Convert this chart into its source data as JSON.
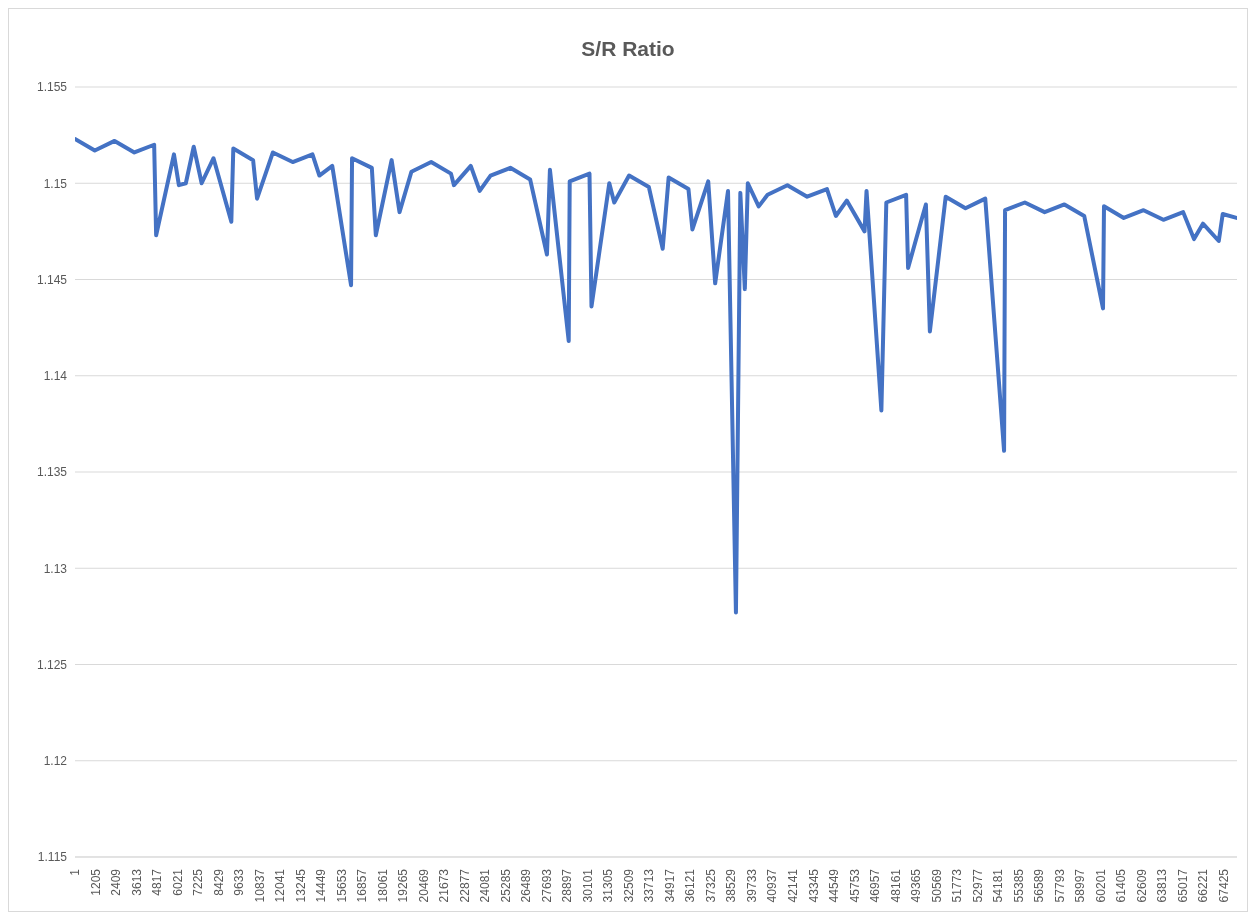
{
  "chart_data": {
    "type": "line",
    "title": "S/R Ratio",
    "x": [
      1,
      1162,
      2324,
      3485,
      4647,
      4763,
      5808,
      6098,
      6505,
      6969,
      7434,
      8131,
      9176,
      9292,
      10454,
      10686,
      11615,
      12776,
      13938,
      14344,
      15099,
      16203,
      16261,
      17422,
      17656,
      18583,
      19048,
      19745,
      20906,
      22068,
      22242,
      23229,
      23752,
      24390,
      25552,
      26713,
      27700,
      27875,
      28978,
      29036,
      30197,
      30314,
      31359,
      31649,
      32520,
      33682,
      34494,
      34843,
      36004,
      36237,
      37166,
      37572,
      38327,
      38792,
      39050,
      39314,
      39489,
      40127,
      40650,
      41811,
      42973,
      44134,
      44657,
      45296,
      46341,
      46457,
      47328,
      47618,
      48780,
      48896,
      49651,
      49941,
      50174,
      51103,
      52264,
      53425,
      54529,
      54587,
      55748,
      56910,
      58071,
      59232,
      60336,
      60394,
      61555,
      62717,
      63878,
      65039,
      65678,
      66201,
      67130,
      67362,
      68174
    ],
    "series": [
      {
        "color": "#4472c4",
        "values": [
          1.1523,
          1.1517,
          1.1522,
          1.1516,
          1.152,
          1.1473,
          1.1515,
          1.1499,
          1.15,
          1.1519,
          1.15,
          1.1513,
          1.148,
          1.1518,
          1.1512,
          1.1492,
          1.1516,
          1.1511,
          1.1515,
          1.1504,
          1.1509,
          1.1447,
          1.1513,
          1.1508,
          1.1473,
          1.1512,
          1.1485,
          1.1506,
          1.1511,
          1.1505,
          1.1499,
          1.1509,
          1.1496,
          1.1504,
          1.1508,
          1.1502,
          1.1463,
          1.1507,
          1.1418,
          1.1501,
          1.1505,
          1.1436,
          1.15,
          1.149,
          1.1504,
          1.1498,
          1.1466,
          1.1503,
          1.1497,
          1.1476,
          1.1501,
          1.1448,
          1.1496,
          1.1277,
          1.1495,
          1.1445,
          1.15,
          1.1488,
          1.1494,
          1.1499,
          1.1493,
          1.1497,
          1.1483,
          1.1491,
          1.1475,
          1.1496,
          1.1382,
          1.149,
          1.1494,
          1.1456,
          1.148,
          1.1489,
          1.1423,
          1.1493,
          1.1487,
          1.1492,
          1.1361,
          1.1486,
          1.149,
          1.1485,
          1.1489,
          1.1483,
          1.1435,
          1.1488,
          1.1482,
          1.1486,
          1.1481,
          1.1485,
          1.1471,
          1.1479,
          1.147,
          1.1484,
          1.1482
        ]
      }
    ],
    "xlim": [
      1,
      68200
    ],
    "xticks": [
      1,
      1205,
      2409,
      3613,
      4817,
      6021,
      7225,
      8429,
      9633,
      10837,
      12041,
      13245,
      14449,
      15653,
      16857,
      18061,
      19265,
      20469,
      21673,
      22877,
      24081,
      25285,
      26489,
      27693,
      28897,
      30101,
      31305,
      32509,
      33713,
      34917,
      36121,
      37325,
      38529,
      39733,
      40937,
      42141,
      43345,
      44549,
      45753,
      46957,
      48161,
      49365,
      50569,
      51773,
      52977,
      54181,
      55385,
      56589,
      57793,
      58997,
      60201,
      61405,
      62609,
      63813,
      65017,
      66221,
      67425
    ],
    "ylim": [
      1.115,
      1.155
    ],
    "yticks": [
      1.115,
      1.12,
      1.125,
      1.13,
      1.135,
      1.14,
      1.145,
      1.15,
      1.155
    ],
    "grid": "y",
    "legend": false,
    "marker": "none",
    "line_style": "solid"
  }
}
